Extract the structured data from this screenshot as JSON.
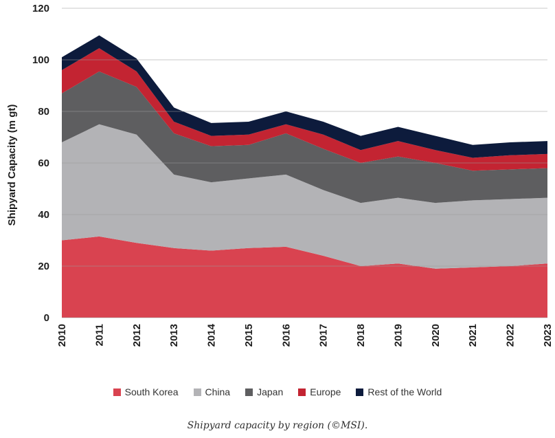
{
  "chart_data": {
    "type": "area",
    "stacked": true,
    "ylabel": "Shipyard Capacity (m gt)",
    "xlabel": "",
    "ylim": [
      0,
      120
    ],
    "yticks": [
      0,
      20,
      40,
      60,
      80,
      100,
      120
    ],
    "grid": true,
    "legend_position": "bottom",
    "categories": [
      "2010",
      "2011",
      "2012",
      "2013",
      "2014",
      "2015",
      "2016",
      "2017",
      "2018",
      "2019",
      "2020",
      "2021",
      "2022",
      "2023"
    ],
    "series": [
      {
        "name": "South Korea",
        "color": "#d94350",
        "values": [
          30,
          31.5,
          29,
          27,
          26,
          27,
          27.5,
          24,
          20,
          21,
          19,
          19.5,
          20,
          21
        ]
      },
      {
        "name": "China",
        "color": "#b3b3b6",
        "values": [
          38,
          43.5,
          42,
          28.5,
          26.5,
          27,
          28,
          25.5,
          24.5,
          25.5,
          25.5,
          26,
          26,
          25.5
        ]
      },
      {
        "name": "Japan",
        "color": "#5e5e60",
        "values": [
          19,
          20.5,
          18.5,
          16,
          14,
          13,
          16,
          16,
          15.5,
          16,
          15.5,
          11.5,
          11.5,
          11.5
        ]
      },
      {
        "name": "Europe",
        "color": "#c32432",
        "values": [
          9,
          9,
          6,
          4.5,
          4,
          4,
          3.5,
          5.5,
          5,
          6,
          5,
          5,
          5.5,
          5.5
        ]
      },
      {
        "name": "Rest of the World",
        "color": "#0d1b3c",
        "values": [
          5,
          5,
          5,
          5.5,
          5,
          5,
          5,
          5,
          5.5,
          5.5,
          5.5,
          5,
          5,
          5
        ]
      }
    ]
  },
  "caption": "Shipyard capacity by region (©MSI)."
}
